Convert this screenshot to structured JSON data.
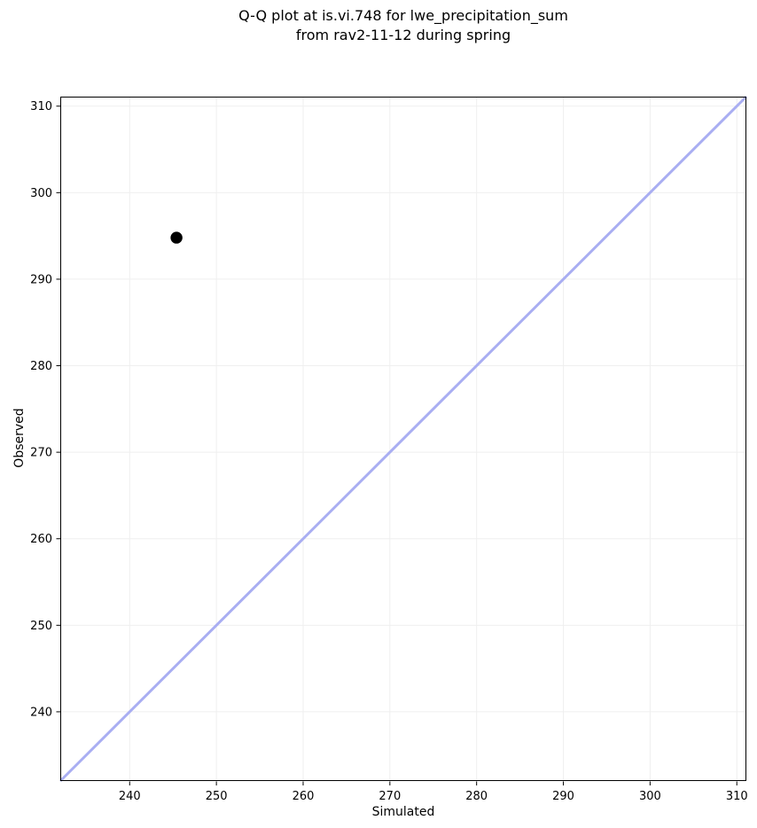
{
  "title": {
    "line1": "Q-Q plot at is.vi.748 for lwe_precipitation_sum",
    "line2": "from rav2-11-12 during spring"
  },
  "colors": {
    "background": "#ffffff",
    "grid": "#efefef",
    "axis": "#000000",
    "identity_line": "#a9aef2",
    "point": "#000000",
    "text": "#000000"
  },
  "chart_data": {
    "type": "scatter",
    "title": "Q-Q plot at is.vi.748 for lwe_precipitation_sum\nfrom rav2-11-12 during spring",
    "xlabel": "Simulated",
    "ylabel": "Observed",
    "xlim": [
      232.0,
      311.1
    ],
    "ylim": [
      232.0,
      311.1
    ],
    "xticks": [
      240,
      250,
      260,
      270,
      280,
      290,
      300,
      310
    ],
    "yticks": [
      240,
      250,
      260,
      270,
      280,
      290,
      300,
      310
    ],
    "grid": true,
    "legend": "none",
    "series": [
      {
        "name": "identity-line",
        "type": "line",
        "color": "#a9aef2",
        "width": 3,
        "x": [
          232.0,
          311.1
        ],
        "y": [
          232.0,
          311.1
        ]
      },
      {
        "name": "quantile-points",
        "type": "scatter",
        "color": "#000000",
        "marker_radius": 6.7,
        "x": [
          245.4
        ],
        "y": [
          294.8
        ]
      }
    ]
  }
}
